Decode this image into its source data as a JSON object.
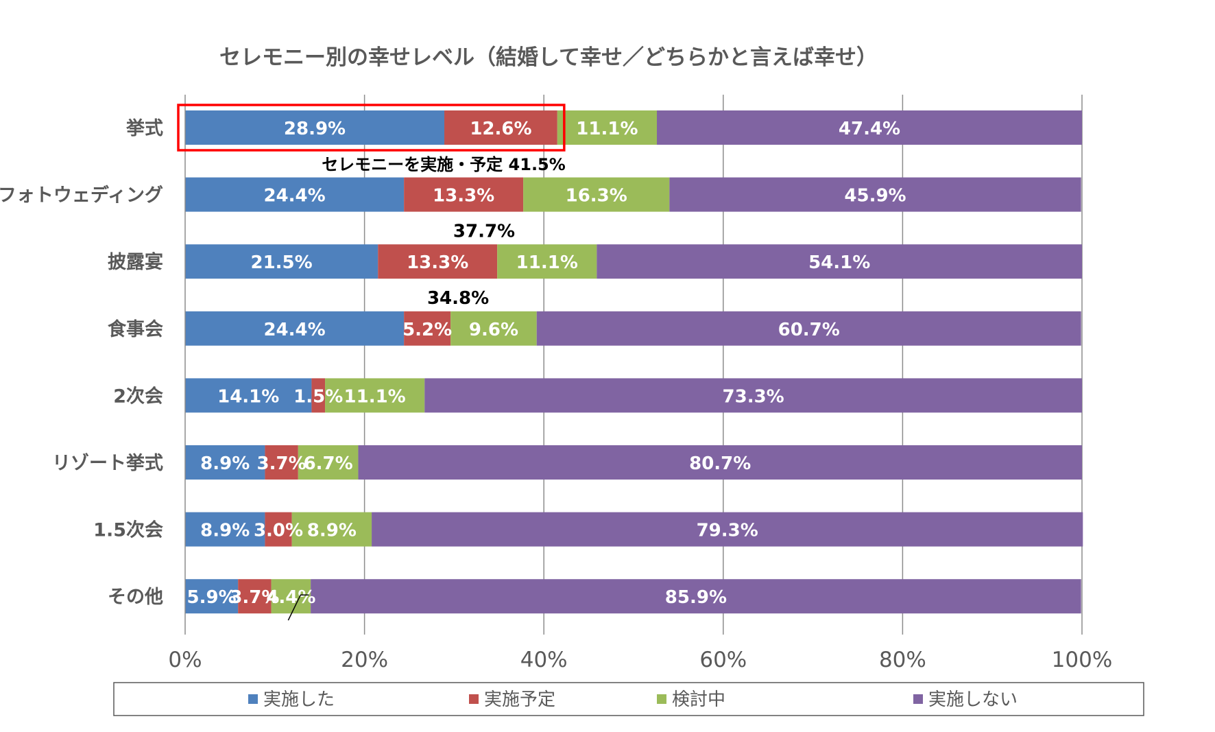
{
  "chart_data": {
    "type": "bar",
    "orientation": "horizontal",
    "stacked": true,
    "title": "セレモニー別の幸せレベル（結婚して幸せ／どちらかと言えば幸せ）",
    "categories": [
      "挙式",
      "フォトウェディング",
      "披露宴",
      "食事会",
      "2次会",
      "リゾート挙式",
      "1.5次会",
      "その他"
    ],
    "series": [
      {
        "name": "実施した",
        "color": "#4f81bd",
        "values": [
          28.9,
          24.4,
          21.5,
          24.4,
          14.1,
          8.9,
          8.9,
          5.9
        ]
      },
      {
        "name": "実施予定",
        "color": "#c0504d",
        "values": [
          12.6,
          13.3,
          13.3,
          5.2,
          1.5,
          3.7,
          3.0,
          3.7
        ]
      },
      {
        "name": "検討中",
        "color": "#9bbb59",
        "values": [
          11.1,
          16.3,
          11.1,
          9.6,
          11.1,
          6.7,
          8.9,
          4.4
        ]
      },
      {
        "name": "実施しない",
        "color": "#8064a2",
        "values": [
          47.4,
          45.9,
          54.1,
          60.7,
          73.3,
          80.7,
          79.3,
          85.9
        ]
      }
    ],
    "data_labels": [
      [
        "28.9%",
        "12.6%",
        "11.1%",
        "47.4%"
      ],
      [
        "24.4%",
        "13.3%",
        "16.3%",
        "45.9%"
      ],
      [
        "21.5%",
        "13.3%",
        "11.1%",
        "54.1%"
      ],
      [
        "24.4%",
        "5.2%",
        "9.6%",
        "60.7%"
      ],
      [
        "14.1%",
        "1.5%",
        "11.1%",
        "73.3%"
      ],
      [
        "8.9%",
        "3.7%",
        "6.7%",
        "80.7%"
      ],
      [
        "8.9%",
        "3.0%",
        "8.9%",
        "79.3%"
      ],
      [
        "5.9%",
        "3.7%",
        "4.4%",
        "85.9%"
      ]
    ],
    "x_ticks": [
      "0%",
      "20%",
      "40%",
      "60%",
      "80%",
      "100%"
    ],
    "xlim": [
      0,
      100
    ],
    "grid": true,
    "legend_position": "bottom",
    "annotations": [
      {
        "text": "セレモニーを実施・予定 41.5%",
        "category": "挙式"
      },
      {
        "text": "37.7%",
        "category": "フォトウェディング"
      },
      {
        "text": "34.8%",
        "category": "披露宴"
      }
    ],
    "highlight": {
      "category": "挙式",
      "series": [
        "実施した",
        "実施予定"
      ],
      "color": "#ff0000"
    }
  }
}
